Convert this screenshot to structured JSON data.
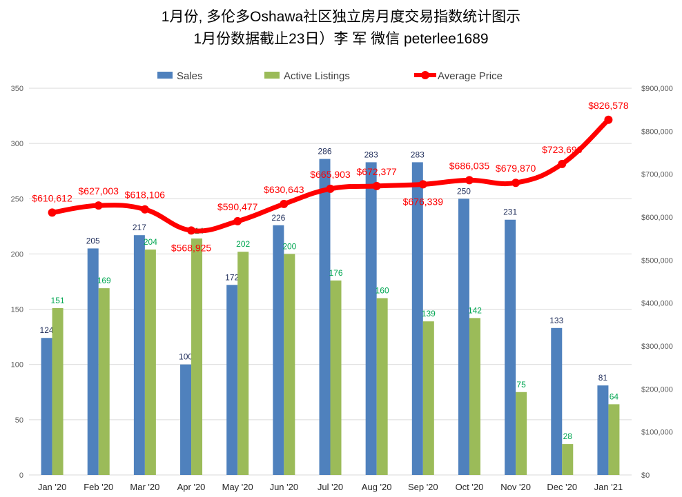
{
  "chart_data": {
    "type": "bar",
    "title": "1月份, 多伦多Oshawa社区独立房月度交易指数统计图示",
    "subtitle": "1月份数据截止23日）李 军  微信  peterlee1689",
    "categories": [
      "Jan '20",
      "Feb '20",
      "Mar '20",
      "Apr '20",
      "May '20",
      "Jun '20",
      "Jul '20",
      "Aug '20",
      "Sep '20",
      "Oct '20",
      "Nov '20",
      "Dec '20",
      "Jan '21"
    ],
    "series": [
      {
        "name": "Sales",
        "type": "bar",
        "axis": "left",
        "color": "#4F81BD",
        "label_color": "#1F2D5A",
        "values": [
          124,
          205,
          217,
          100,
          172,
          226,
          286,
          283,
          283,
          250,
          231,
          133,
          81
        ]
      },
      {
        "name": "Active Listings",
        "type": "bar",
        "axis": "left",
        "color": "#9BBB59",
        "label_color": "#00A651",
        "values": [
          151,
          169,
          204,
          214,
          202,
          200,
          176,
          160,
          139,
          142,
          75,
          28,
          64
        ]
      },
      {
        "name": "Average Price",
        "type": "line",
        "axis": "right",
        "color": "#FF0000",
        "values": [
          610612,
          627003,
          618106,
          568925,
          590477,
          630643,
          665903,
          672377,
          676339,
          686035,
          679870,
          723698,
          826578
        ],
        "labels": [
          "$610,612",
          "$627,003",
          "$618,106",
          "$568,925",
          "$590,477",
          "$630,643",
          "$665,903",
          "$672,377",
          "$676,339",
          "$686,035",
          "$679,870",
          "$723,698",
          "$826,578"
        ]
      }
    ],
    "y_left": {
      "min": 0,
      "max": 350,
      "ticks": [
        "0",
        "50",
        "100",
        "150",
        "200",
        "250",
        "300",
        "350"
      ]
    },
    "y_right": {
      "min": 0,
      "max": 900000,
      "ticks": [
        "$0",
        "$100,000",
        "$200,000",
        "$300,000",
        "$400,000",
        "$500,000",
        "$600,000",
        "$700,000",
        "$800,000",
        "$900,000"
      ]
    },
    "grid": true,
    "legend_position": "top"
  }
}
